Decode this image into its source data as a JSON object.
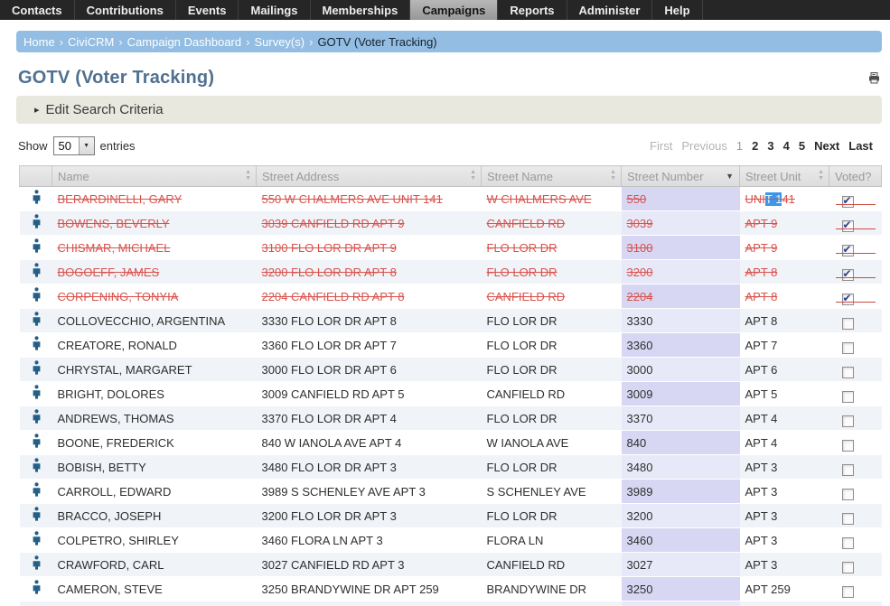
{
  "navbar": {
    "items": [
      {
        "label": "Contacts",
        "active": false
      },
      {
        "label": "Contributions",
        "active": false
      },
      {
        "label": "Events",
        "active": false
      },
      {
        "label": "Mailings",
        "active": false
      },
      {
        "label": "Memberships",
        "active": false
      },
      {
        "label": "Campaigns",
        "active": true
      },
      {
        "label": "Reports",
        "active": false
      },
      {
        "label": "Administer",
        "active": false
      },
      {
        "label": "Help",
        "active": false
      }
    ]
  },
  "breadcrumb": {
    "separator": "›",
    "crumbs": [
      {
        "label": "Home",
        "link": true
      },
      {
        "label": "CiviCRM",
        "link": true
      },
      {
        "label": "Campaign Dashboard",
        "link": true
      },
      {
        "label": "Survey(s)",
        "link": true
      },
      {
        "label": "GOTV (Voter Tracking)",
        "link": false
      }
    ]
  },
  "header": {
    "title": "GOTV (Voter Tracking)"
  },
  "search_panel": {
    "label": "Edit Search Criteria",
    "arrow": "▸",
    "collapsed": true
  },
  "length_control": {
    "prefix": "Show",
    "page_size": "50",
    "suffix": "entries",
    "arrow": "▼"
  },
  "pagination": {
    "items": [
      {
        "label": "First",
        "state": "disabled"
      },
      {
        "label": "Previous",
        "state": "disabled"
      },
      {
        "label": "1",
        "state": "current"
      },
      {
        "label": "2",
        "state": "link"
      },
      {
        "label": "3",
        "state": "link"
      },
      {
        "label": "4",
        "state": "link"
      },
      {
        "label": "5",
        "state": "link"
      },
      {
        "label": "Next",
        "state": "link"
      },
      {
        "label": "Last",
        "state": "link"
      }
    ]
  },
  "table": {
    "columns": [
      {
        "label": "",
        "sort": "none"
      },
      {
        "label": "Name",
        "sort": "both"
      },
      {
        "label": "Street Address",
        "sort": "both"
      },
      {
        "label": "Street Name",
        "sort": "both"
      },
      {
        "label": "Street Number",
        "sort": "desc"
      },
      {
        "label": "Street Unit",
        "sort": "both"
      },
      {
        "label": "Voted?",
        "sort": "none"
      }
    ],
    "rows": [
      {
        "name": "BERARDINELLI, GARY",
        "street_address": "550 W CHALMERS AVE UNIT 141",
        "street_name": "W CHALMERS AVE",
        "street_number": "550",
        "street_unit": "UNIT 141",
        "voted": true,
        "unit_selection": {
          "pre": "UNI",
          "sel": "T 1",
          "post": "41"
        }
      },
      {
        "name": "BOWENS, BEVERLY",
        "street_address": "3039 CANFIELD RD APT 9",
        "street_name": "CANFIELD RD",
        "street_number": "3039",
        "street_unit": "APT 9",
        "voted": true
      },
      {
        "name": "CHISMAR, MICHAEL",
        "street_address": "3100 FLO LOR DR APT 9",
        "street_name": "FLO LOR DR",
        "street_number": "3100",
        "street_unit": "APT 9",
        "voted": true
      },
      {
        "name": "BOGOEFF, JAMES",
        "street_address": "3200 FLO LOR DR APT 8",
        "street_name": "FLO LOR DR",
        "street_number": "3200",
        "street_unit": "APT 8",
        "voted": true
      },
      {
        "name": "CORPENING, TONYIA",
        "street_address": "2204 CANFIELD RD APT 8",
        "street_name": "CANFIELD RD",
        "street_number": "2204",
        "street_unit": "APT 8",
        "voted": true
      },
      {
        "name": "COLLOVECCHIO, ARGENTINA",
        "street_address": "3330 FLO LOR DR APT 8",
        "street_name": "FLO LOR DR",
        "street_number": "3330",
        "street_unit": "APT 8",
        "voted": false
      },
      {
        "name": "CREATORE, RONALD",
        "street_address": "3360 FLO LOR DR APT 7",
        "street_name": "FLO LOR DR",
        "street_number": "3360",
        "street_unit": "APT 7",
        "voted": false
      },
      {
        "name": "CHRYSTAL, MARGARET",
        "street_address": "3000 FLO LOR DR APT 6",
        "street_name": "FLO LOR DR",
        "street_number": "3000",
        "street_unit": "APT 6",
        "voted": false
      },
      {
        "name": "BRIGHT, DOLORES",
        "street_address": "3009 CANFIELD RD APT 5",
        "street_name": "CANFIELD RD",
        "street_number": "3009",
        "street_unit": "APT 5",
        "voted": false
      },
      {
        "name": "ANDREWS, THOMAS",
        "street_address": "3370 FLO LOR DR APT 4",
        "street_name": "FLO LOR DR",
        "street_number": "3370",
        "street_unit": "APT 4",
        "voted": false
      },
      {
        "name": "BOONE, FREDERICK",
        "street_address": "840 W IANOLA AVE APT 4",
        "street_name": "W IANOLA AVE",
        "street_number": "840",
        "street_unit": "APT 4",
        "voted": false
      },
      {
        "name": "BOBISH, BETTY",
        "street_address": "3480 FLO LOR DR APT 3",
        "street_name": "FLO LOR DR",
        "street_number": "3480",
        "street_unit": "APT 3",
        "voted": false
      },
      {
        "name": "CARROLL, EDWARD",
        "street_address": "3989 S SCHENLEY AVE APT 3",
        "street_name": "S SCHENLEY AVE",
        "street_number": "3989",
        "street_unit": "APT 3",
        "voted": false
      },
      {
        "name": "BRACCO, JOSEPH",
        "street_address": "3200 FLO LOR DR APT 3",
        "street_name": "FLO LOR DR",
        "street_number": "3200",
        "street_unit": "APT 3",
        "voted": false
      },
      {
        "name": "COLPETRO, SHIRLEY",
        "street_address": "3460 FLORA LN APT 3",
        "street_name": "FLORA LN",
        "street_number": "3460",
        "street_unit": "APT 3",
        "voted": false
      },
      {
        "name": "CRAWFORD, CARL",
        "street_address": "3027 CANFIELD RD APT 3",
        "street_name": "CANFIELD RD",
        "street_number": "3027",
        "street_unit": "APT 3",
        "voted": false
      },
      {
        "name": "CAMERON, STEVE",
        "street_address": "3250 BRANDYWINE DR APT 259",
        "street_name": "BRANDYWINE DR",
        "street_number": "3250",
        "street_unit": "APT 259",
        "voted": false
      },
      {
        "name": "",
        "street_address": "",
        "street_name": "",
        "street_number": "",
        "street_unit": "",
        "voted": false,
        "partial": true
      }
    ]
  },
  "colors": {
    "voted_red": "#d9524c",
    "selection_blue": "#3d97e9",
    "breadcrumb_blue": "#93bde2",
    "title_blue": "#4f708f",
    "sorted_col_odd": "#d7d7f3",
    "sorted_col_even": "#e8e9f8",
    "stripe_row": "#f0f3f8",
    "person_icon": "#236087",
    "navbar_bg": "#262626"
  }
}
